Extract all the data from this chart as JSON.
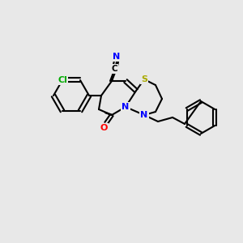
{
  "background_color": "#e8e8e8",
  "bond_color": "#000000",
  "bond_width": 1.5,
  "atom_colors": {
    "N": "#0000ff",
    "O": "#ff0000",
    "S": "#aaaa00",
    "Cl": "#00aa00",
    "C": "#000000"
  },
  "font_size": 8,
  "fig_size": [
    3.0,
    3.0
  ],
  "dpi": 100
}
